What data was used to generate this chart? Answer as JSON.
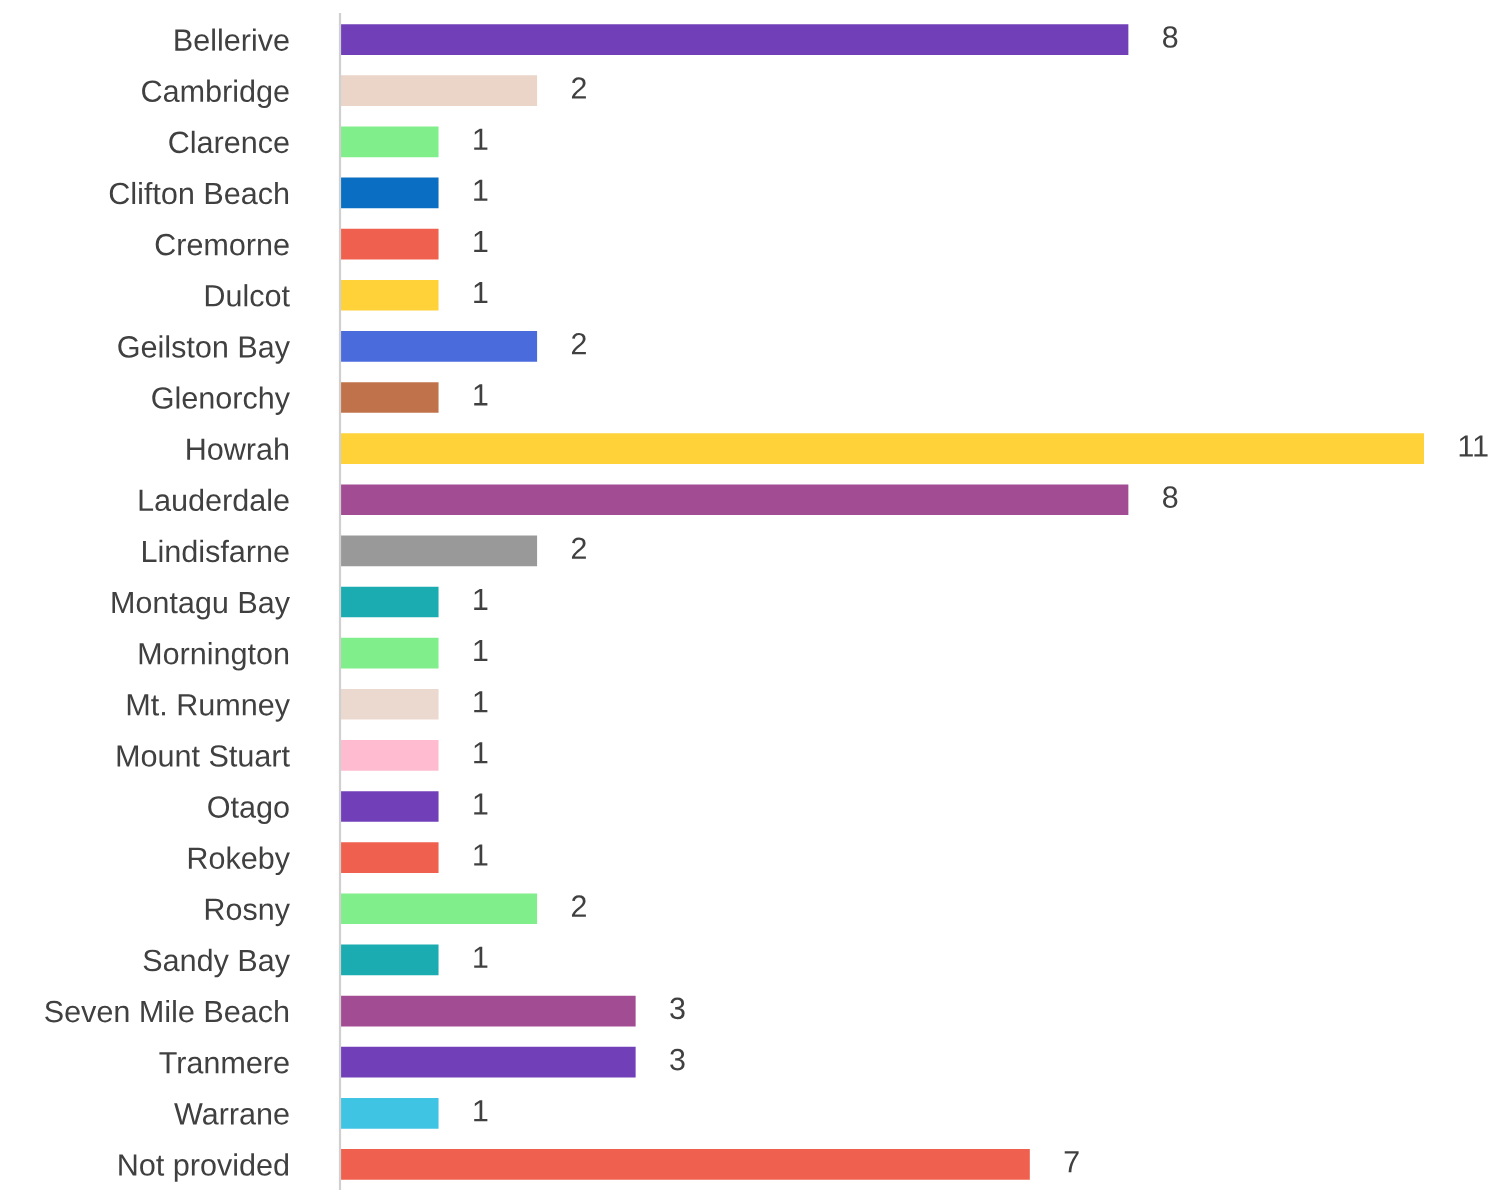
{
  "chart_data": {
    "type": "bar",
    "orientation": "horizontal",
    "data_labels": true,
    "grid": false,
    "legend": false,
    "categories": [
      "Bellerive",
      "Cambridge",
      "Clarence",
      "Clifton Beach",
      "Cremorne",
      "Dulcot",
      "Geilston Bay",
      "Glenorchy",
      "Howrah",
      "Lauderdale",
      "Lindisfarne",
      "Montagu Bay",
      "Mornington",
      "Mt. Rumney",
      "Mount Stuart",
      "Otago",
      "Rokeby",
      "Rosny",
      "Sandy Bay",
      "Seven Mile Beach",
      "Tranmere",
      "Warrane",
      "Not provided"
    ],
    "values": [
      8,
      2,
      1,
      1,
      1,
      1,
      2,
      1,
      11,
      8,
      2,
      1,
      1,
      1,
      1,
      1,
      1,
      2,
      1,
      3,
      3,
      1,
      7
    ],
    "colors": [
      "#7140b8",
      "#ebd5c8",
      "#80ee8a",
      "#0a6fc2",
      "#f0604f",
      "#ffd23a",
      "#4a6bdc",
      "#c0734a",
      "#ffd23a",
      "#a24d93",
      "#999999",
      "#1aacb0",
      "#80ee8a",
      "#ebd9d0",
      "#ffbcd0",
      "#7140b8",
      "#f0604f",
      "#80ee8a",
      "#1aacb0",
      "#a24d93",
      "#7140b8",
      "#40c4e4",
      "#f0604f"
    ]
  }
}
